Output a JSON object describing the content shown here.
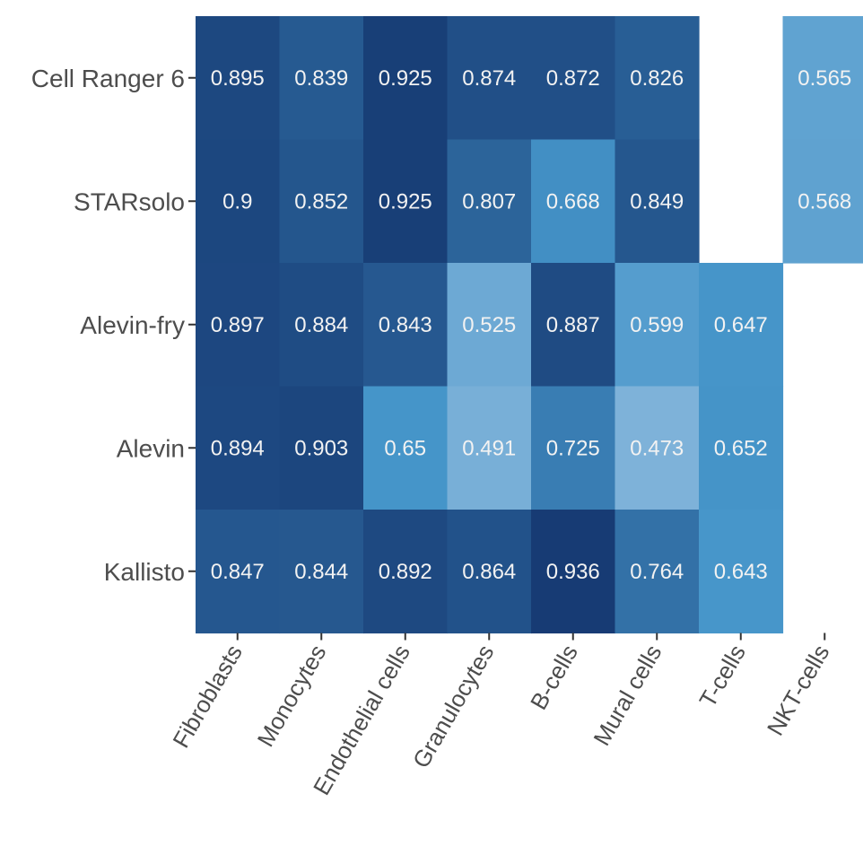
{
  "chart_data": {
    "type": "heatmap",
    "title": "",
    "xlabel": "",
    "ylabel": "",
    "grid": false,
    "legend": "none",
    "color_scale": {
      "low": "#7fb2d9",
      "mid": "#4595c9",
      "high": "#163a73"
    },
    "x_categories": [
      "Fibroblasts",
      "Monocytes",
      "Endothelial cells",
      "Granulocytes",
      "B-cells",
      "Mural cells",
      "T-cells",
      "NKT-cells"
    ],
    "y_categories": [
      "Cell Ranger 6",
      "STARsolo",
      "Alevin-fry",
      "Alevin",
      "Kallisto"
    ],
    "values": [
      [
        0.895,
        0.839,
        0.925,
        0.874,
        0.872,
        0.826,
        null,
        0.565
      ],
      [
        0.9,
        0.852,
        0.925,
        0.807,
        0.668,
        0.849,
        null,
        0.568
      ],
      [
        0.897,
        0.884,
        0.843,
        0.525,
        0.887,
        0.599,
        0.647,
        null
      ],
      [
        0.894,
        0.903,
        0.65,
        0.491,
        0.725,
        0.473,
        0.652,
        null
      ],
      [
        0.847,
        0.844,
        0.892,
        0.864,
        0.936,
        0.764,
        0.643,
        null
      ]
    ],
    "value_labels": [
      [
        "0.895",
        "0.839",
        "0.925",
        "0.874",
        "0.872",
        "0.826",
        "",
        "0.565"
      ],
      [
        "0.9",
        "0.852",
        "0.925",
        "0.807",
        "0.668",
        "0.849",
        "",
        "0.568"
      ],
      [
        "0.897",
        "0.884",
        "0.843",
        "0.525",
        "0.887",
        "0.599",
        "0.647",
        ""
      ],
      [
        "0.894",
        "0.903",
        "0.65",
        "0.491",
        "0.725",
        "0.473",
        "0.652",
        ""
      ],
      [
        "0.847",
        "0.844",
        "0.892",
        "0.864",
        "0.936",
        "0.764",
        "0.643",
        ""
      ]
    ]
  }
}
